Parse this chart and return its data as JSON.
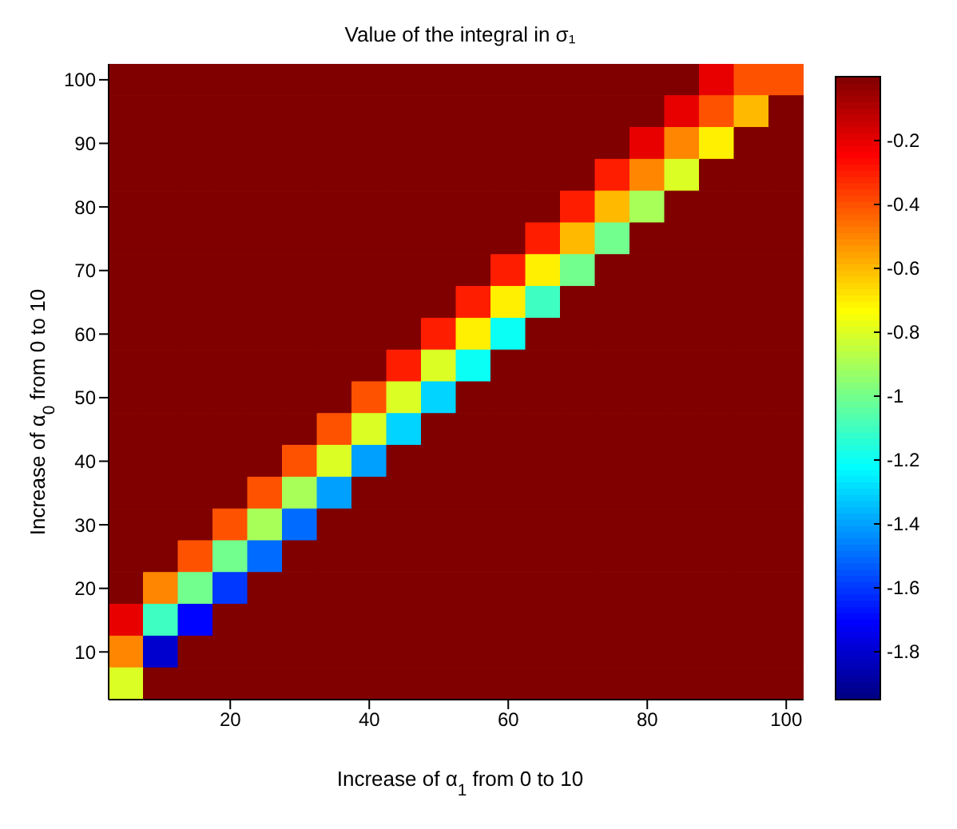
{
  "chart_data": {
    "type": "heatmap",
    "title": "Value of the integral in σ₁",
    "xlabel": "Increase of α$_{1}$ from 0 to 10",
    "ylabel": "Increase of α$_{0}$ from 0 to 10",
    "categories": [
      null,
      null,
      null,
      "20",
      null,
      null,
      null,
      "40",
      null,
      null,
      null,
      "60",
      null,
      null,
      null,
      "80",
      null,
      null,
      null,
      "100"
    ],
    "y_categories": [
      "100",
      null,
      "90",
      null,
      "80",
      null,
      "70",
      null,
      "60",
      null,
      "50",
      null,
      "40",
      null,
      "30",
      null,
      "20",
      null,
      "10",
      null
    ],
    "clim": [
      -1.95,
      0
    ],
    "cticks": [
      -1.8,
      -1.6,
      -1.4,
      -1.2,
      -1,
      -0.8,
      -0.6,
      -0.4,
      -0.2
    ],
    "cells": [
      [
        0,
        0,
        0,
        0,
        0,
        0,
        0,
        0,
        0,
        0,
        0,
        0,
        0,
        0,
        0,
        0,
        0,
        -0.2,
        -0.4,
        -0.4
      ],
      [
        0,
        0,
        0,
        0,
        0,
        0,
        0,
        0,
        0,
        0,
        0,
        0,
        0,
        0,
        0,
        0,
        -0.2,
        -0.4,
        -0.6,
        0
      ],
      [
        0,
        0,
        0,
        0,
        0,
        0,
        0,
        0,
        0,
        0,
        0,
        0,
        0,
        0,
        0,
        -0.2,
        -0.5,
        -0.7,
        0,
        0
      ],
      [
        0,
        0,
        0,
        0,
        0,
        0,
        0,
        0,
        0,
        0,
        0,
        0,
        0,
        0,
        -0.3,
        -0.5,
        -0.8,
        0,
        0,
        0
      ],
      [
        0,
        0,
        0,
        0,
        0,
        0,
        0,
        0,
        0,
        0,
        0,
        0,
        0,
        -0.3,
        -0.6,
        -0.9,
        0,
        0,
        0,
        0
      ],
      [
        0,
        0,
        0,
        0,
        0,
        0,
        0,
        0,
        0,
        0,
        0,
        0,
        -0.3,
        -0.6,
        -1.0,
        0,
        0,
        0,
        0,
        0
      ],
      [
        0,
        0,
        0,
        0,
        0,
        0,
        0,
        0,
        0,
        0,
        0,
        -0.3,
        -0.7,
        -1.0,
        0,
        0,
        0,
        0,
        0,
        0
      ],
      [
        0,
        0,
        0,
        0,
        0,
        0,
        0,
        0,
        0,
        0,
        -0.3,
        -0.7,
        -1.1,
        0,
        0,
        0,
        0,
        0,
        0,
        0
      ],
      [
        0,
        0,
        0,
        0,
        0,
        0,
        0,
        0,
        0,
        -0.3,
        -0.7,
        -1.2,
        0,
        0,
        0,
        0,
        0,
        0,
        0,
        0
      ],
      [
        0,
        0,
        0,
        0,
        0,
        0,
        0,
        0,
        -0.3,
        -0.8,
        -1.2,
        0,
        0,
        0,
        0,
        0,
        0,
        0,
        0,
        0
      ],
      [
        0,
        0,
        0,
        0,
        0,
        0,
        0,
        -0.4,
        -0.8,
        -1.3,
        0,
        0,
        0,
        0,
        0,
        0,
        0,
        0,
        0,
        0
      ],
      [
        0,
        0,
        0,
        0,
        0,
        0,
        -0.4,
        -0.8,
        -1.3,
        0,
        0,
        0,
        0,
        0,
        0,
        0,
        0,
        0,
        0,
        0
      ],
      [
        0,
        0,
        0,
        0,
        0,
        -0.4,
        -0.8,
        -1.4,
        0,
        0,
        0,
        0,
        0,
        0,
        0,
        0,
        0,
        0,
        0,
        0
      ],
      [
        0,
        0,
        0,
        0,
        -0.4,
        -0.9,
        -1.4,
        0,
        0,
        0,
        0,
        0,
        0,
        0,
        0,
        0,
        0,
        0,
        0,
        0
      ],
      [
        0,
        0,
        0,
        -0.4,
        -0.9,
        -1.5,
        0,
        0,
        0,
        0,
        0,
        0,
        0,
        0,
        0,
        0,
        0,
        0,
        0,
        0
      ],
      [
        0,
        0,
        -0.4,
        -1.0,
        -1.5,
        0,
        0,
        0,
        0,
        0,
        0,
        0,
        0,
        0,
        0,
        0,
        0,
        0,
        0,
        0
      ],
      [
        0,
        -0.5,
        -1.0,
        -1.6,
        0,
        0,
        0,
        0,
        0,
        0,
        0,
        0,
        0,
        0,
        0,
        0,
        0,
        0,
        0,
        0
      ],
      [
        -0.2,
        -1.1,
        -1.7,
        0,
        0,
        0,
        0,
        0,
        0,
        0,
        0,
        0,
        0,
        0,
        0,
        0,
        0,
        0,
        0,
        0
      ],
      [
        -0.5,
        -1.8,
        0,
        0,
        0,
        0,
        0,
        0,
        0,
        0,
        0,
        0,
        0,
        0,
        0,
        0,
        0,
        0,
        0,
        0
      ],
      [
        -0.8,
        0,
        0,
        0,
        0,
        0,
        0,
        0,
        0,
        0,
        0,
        0,
        0,
        0,
        0,
        0,
        0,
        0,
        0,
        0
      ]
    ]
  }
}
